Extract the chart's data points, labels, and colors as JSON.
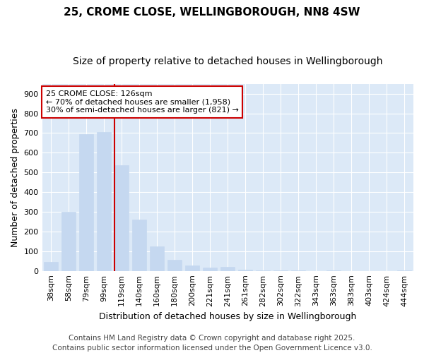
{
  "title1": "25, CROME CLOSE, WELLINGBOROUGH, NN8 4SW",
  "title2": "Size of property relative to detached houses in Wellingborough",
  "xlabel": "Distribution of detached houses by size in Wellingborough",
  "ylabel": "Number of detached properties",
  "categories": [
    "38sqm",
    "58sqm",
    "79sqm",
    "99sqm",
    "119sqm",
    "140sqm",
    "160sqm",
    "180sqm",
    "200sqm",
    "221sqm",
    "241sqm",
    "261sqm",
    "282sqm",
    "302sqm",
    "322sqm",
    "343sqm",
    "363sqm",
    "383sqm",
    "403sqm",
    "424sqm",
    "444sqm"
  ],
  "values": [
    45,
    300,
    695,
    705,
    535,
    262,
    125,
    55,
    28,
    15,
    20,
    5,
    2,
    1,
    1,
    0,
    1,
    0,
    0,
    0,
    1
  ],
  "bar_color": "#c5d8f0",
  "bar_edge_color": "#c5d8f0",
  "highlight_line_index": 4,
  "highlight_line_color": "#cc0000",
  "annotation_line1": "25 CROME CLOSE: 126sqm",
  "annotation_line2": "← 70% of detached houses are smaller (1,958)",
  "annotation_line3": "30% of semi-detached houses are larger (821) →",
  "annotation_box_color": "#ffffff",
  "annotation_border_color": "#cc0000",
  "ylim": [
    0,
    950
  ],
  "yticks": [
    0,
    100,
    200,
    300,
    400,
    500,
    600,
    700,
    800,
    900
  ],
  "fig_bg_color": "#ffffff",
  "plot_bg_color": "#dce9f7",
  "grid_color": "#ffffff",
  "footer1": "Contains HM Land Registry data © Crown copyright and database right 2025.",
  "footer2": "Contains public sector information licensed under the Open Government Licence v3.0.",
  "title1_fontsize": 11,
  "title2_fontsize": 10,
  "xlabel_fontsize": 9,
  "ylabel_fontsize": 9,
  "tick_fontsize": 8,
  "annotation_fontsize": 8,
  "footer_fontsize": 7.5
}
